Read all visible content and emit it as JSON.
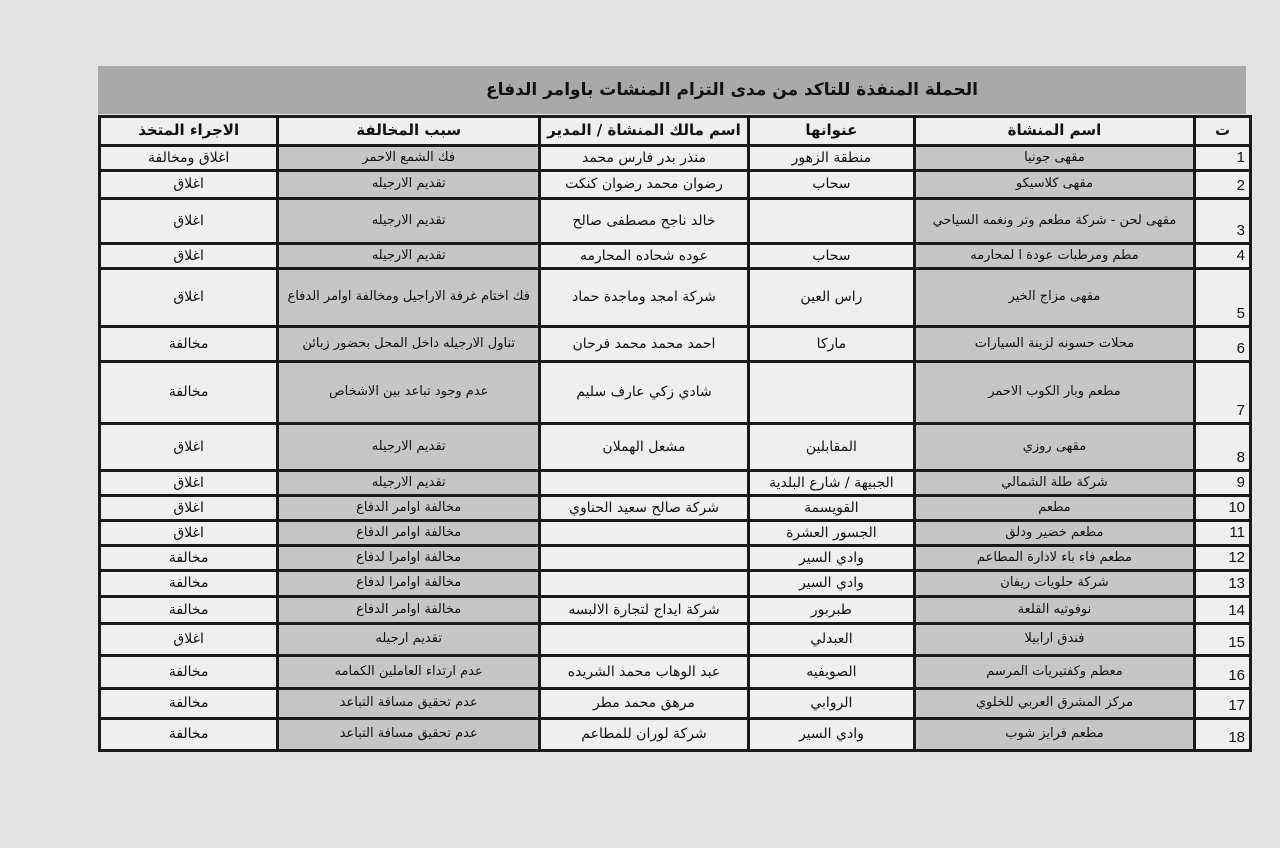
{
  "title": "الحملة المنفذة  للتاكد من مدى التزام المنشات باوامر الدفاع",
  "headers": {
    "num": "ت",
    "name": "اسم المنشاة",
    "address": "عنوانها",
    "owner": "اسم مالك المنشاة / المدير",
    "reason": "سبب المخالفة",
    "action": "الاجراء المتخذ"
  },
  "rows": [
    {
      "num": "1",
      "name": "مقهى جونيا",
      "address": "منطقة الزهور",
      "owner": "منذر بدر فارس محمد",
      "reason": "فك الشمع الاحمر",
      "action": "اغلاق ومخالفة"
    },
    {
      "num": "2",
      "name": "مقهى كلاسيكو",
      "address": "سحاب",
      "owner": "رضوان محمد رضوان كنكت",
      "reason": "تقديم الارجيله",
      "action": "اغلاق"
    },
    {
      "num": "3",
      "name": "مقهى لحن - شركة مطعم وتر ونغمه السياحي",
      "address": "",
      "owner": "خالد ناجح مصطفى صالح",
      "reason": "تقديم الارجيله",
      "action": "اغلاق"
    },
    {
      "num": "4",
      "name": "مطم ومرطبات عودة ا لمحارمه",
      "address": "سحاب",
      "owner": "عوده شحاده المحارمه",
      "reason": "تقديم الارجيله",
      "action": "اغلاق"
    },
    {
      "num": "5",
      "name": "مقهى مزاج الخير",
      "address": "راس العين",
      "owner": "شركة امجد وماجدة حماد",
      "reason": "فك اختام غرفة الاراجيل ومخالفة اوامر الدفاع",
      "action": "اغلاق"
    },
    {
      "num": "6",
      "name": "محلات حسونه لزينة السيارات",
      "address": "ماركا",
      "owner": "احمد محمد محمد فرحان",
      "reason": "تناول الارجيله داخل المحل بحضور زبائن",
      "action": "مخالفة"
    },
    {
      "num": "7",
      "name": "مطعم وبار الكوب الاحمر",
      "address": "",
      "owner": "شادي زكي عارف سليم",
      "reason": "عدم وجود تباعد بين الاشخاص",
      "action": "مخالفة"
    },
    {
      "num": "8",
      "name": "مقهى روزي",
      "address": "المقابلين",
      "owner": "مشعل الهملان",
      "reason": "تقديم الارجيله",
      "action": "اغلاق"
    },
    {
      "num": "9",
      "name": "شركة طلة الشمالي",
      "address": "الجبيهة / شارع البلدية",
      "owner": "",
      "reason": "تقديم الارجيله",
      "action": "اغلاق"
    },
    {
      "num": "10",
      "name": "مطعم",
      "address": "القويسمة",
      "owner": "شركة صالح سعيد الحناوي",
      "reason": "مخالفة اوامر الدفاع",
      "action": "اغلاق"
    },
    {
      "num": "11",
      "name": "مطعم خضير ودلق",
      "address": "الجسور العشرة",
      "owner": "",
      "reason": "مخالفة اوامر الدفاع",
      "action": "اغلاق"
    },
    {
      "num": "12",
      "name": "مطعم فاء باء لادارة المطاعم",
      "address": "وادي السير",
      "owner": "",
      "reason": "مخالفة اوامرا لدفاع",
      "action": "مخالفة"
    },
    {
      "num": "13",
      "name": "شركة حلويات ريفان",
      "address": "وادي السير",
      "owner": "",
      "reason": "مخالفة اوامرا لدفاع",
      "action": "مخالفة"
    },
    {
      "num": "14",
      "name": "نوفوتيه القلعة",
      "address": "طبربور",
      "owner": "شركة ايداج لتجارة الالبسه",
      "reason": "مخالفة اوامر الدفاع",
      "action": "مخالفة"
    },
    {
      "num": "15",
      "name": "فندق ارابيلا",
      "address": "العبدلي",
      "owner": "",
      "reason": "تقديم ارجيله",
      "action": "اغلاق"
    },
    {
      "num": "16",
      "name": "معطم وكفتيريات المرسم",
      "address": "الصويفيه",
      "owner": "عبد الوهاب محمد الشريده",
      "reason": "عدم ارتداء العاملين الكمامه",
      "action": "مخالفة"
    },
    {
      "num": "17",
      "name": "مركز المشرق العربي للخلوي",
      "address": "الروابي",
      "owner": "مرهق محمد مطر",
      "reason": "عدم تحقيق مسافة التباعد",
      "action": "مخالفة"
    },
    {
      "num": "18",
      "name": "مطعم فرايز شوب",
      "address": "وادي السير",
      "owner": "شركة لوران للمطاعم",
      "reason": "عدم تحقيق مسافة التباعد",
      "action": "مخالفة"
    }
  ]
}
